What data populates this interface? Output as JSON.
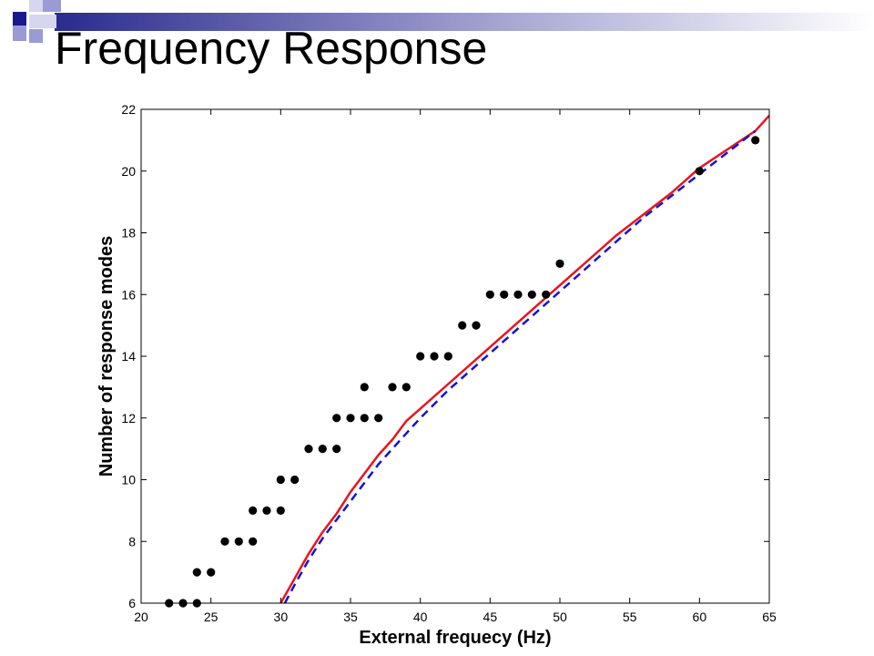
{
  "slide": {
    "title": "Frequency Response",
    "accent_colors": {
      "navy": "#1a1a8c",
      "periwinkle": "#9a9ad4",
      "light": "#d6d6ee"
    }
  },
  "chart_data": {
    "type": "scatter",
    "title": "",
    "xlabel": "External frequecy (Hz)",
    "ylabel": "Number of response modes",
    "xlim": [
      20,
      65
    ],
    "ylim": [
      6,
      22
    ],
    "xticks": [
      20,
      25,
      30,
      35,
      40,
      45,
      50,
      55,
      60,
      65
    ],
    "yticks": [
      6,
      8,
      10,
      12,
      14,
      16,
      18,
      20,
      22
    ],
    "grid": false,
    "legend": "none",
    "series": [
      {
        "kind": "markers",
        "color": "#000000",
        "x": [
          22,
          23,
          24,
          24,
          25,
          26,
          27,
          28,
          28,
          29,
          30,
          30,
          31,
          32,
          33,
          34,
          34,
          35,
          36,
          36,
          37,
          38,
          39,
          40,
          41,
          42,
          43,
          44,
          45,
          46,
          47,
          48,
          49,
          50,
          60,
          64
        ],
        "y": [
          6,
          6,
          6,
          7,
          7,
          8,
          8,
          8,
          9,
          9,
          9,
          10,
          10,
          11,
          11,
          11,
          12,
          12,
          12,
          13,
          12,
          13,
          13,
          14,
          14,
          14,
          15,
          15,
          16,
          16,
          16,
          16,
          16,
          17,
          20,
          21
        ]
      },
      {
        "kind": "line",
        "style": "solid",
        "color": "#e8141e",
        "x": [
          30,
          31,
          32,
          33,
          34,
          35,
          36,
          37,
          38,
          39,
          40,
          42,
          44,
          46,
          48,
          50,
          52,
          54,
          56,
          58,
          60,
          62,
          64,
          65
        ],
        "y": [
          6.0,
          6.8,
          7.6,
          8.3,
          8.9,
          9.6,
          10.2,
          10.8,
          11.3,
          11.9,
          12.3,
          13.1,
          13.9,
          14.7,
          15.5,
          16.3,
          17.1,
          17.9,
          18.6,
          19.3,
          20.1,
          20.7,
          21.3,
          21.8
        ]
      },
      {
        "kind": "line",
        "style": "dashed",
        "color": "#1414c8",
        "x": [
          30.3,
          31,
          32,
          33,
          34,
          35,
          36,
          37,
          38,
          39,
          40,
          42,
          44,
          46,
          48,
          50,
          52,
          54,
          56,
          58,
          60,
          62,
          64
        ],
        "y": [
          6.0,
          6.6,
          7.4,
          8.1,
          8.7,
          9.3,
          9.9,
          10.5,
          11.0,
          11.5,
          12.0,
          12.9,
          13.7,
          14.5,
          15.3,
          16.1,
          16.9,
          17.7,
          18.5,
          19.2,
          19.9,
          20.6,
          21.3
        ]
      }
    ]
  }
}
